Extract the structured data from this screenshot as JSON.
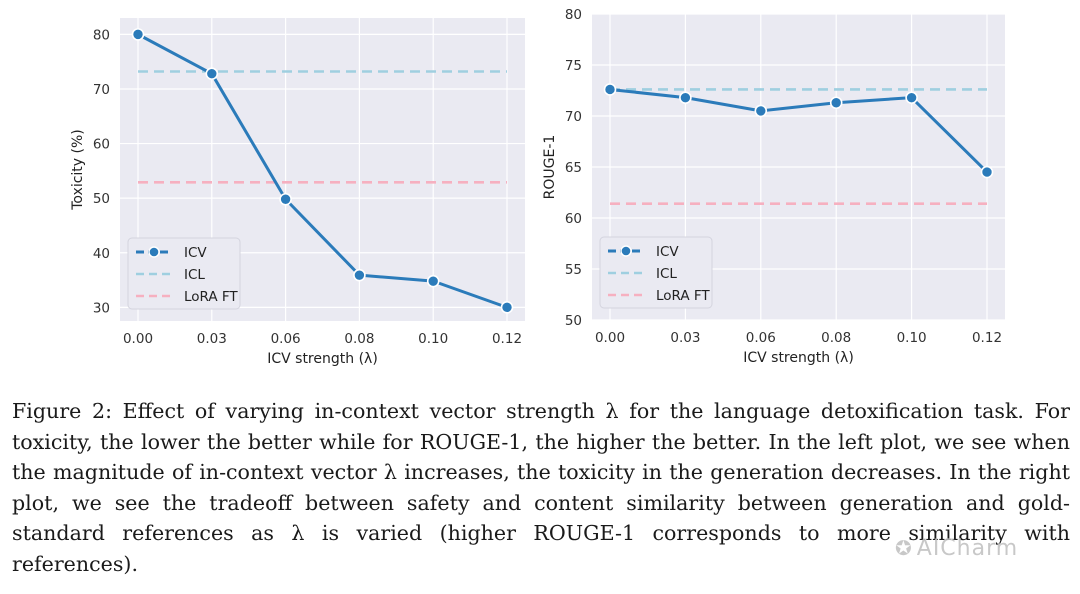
{
  "chart_data": [
    {
      "type": "line",
      "title": "",
      "xlabel": "ICV strength (λ)",
      "ylabel": "Toxicity (%)",
      "categories": [
        "0.00",
        "0.03",
        "0.06",
        "0.08",
        "0.10",
        "0.12"
      ],
      "yticks": [
        "30",
        "40",
        "50",
        "60",
        "70",
        "80"
      ],
      "ylim": [
        27.5,
        83
      ],
      "grid": true,
      "legend_position": "lower-left",
      "series": [
        {
          "name": "ICV",
          "values": [
            80,
            72.8,
            49.8,
            35.9,
            34.8,
            30.0
          ],
          "color": "#2b7bba",
          "style": "solid-marker"
        },
        {
          "name": "ICL",
          "values": [
            73.2,
            73.2,
            73.2,
            73.2,
            73.2,
            73.2
          ],
          "color": "#9fcfe0",
          "style": "dashed"
        },
        {
          "name": "LoRA FT",
          "values": [
            52.9,
            52.9,
            52.9,
            52.9,
            52.9,
            52.9
          ],
          "color": "#f6b0c0",
          "style": "dashed"
        }
      ]
    },
    {
      "type": "line",
      "title": "",
      "xlabel": "ICV strength (λ)",
      "ylabel": "ROUGE-1",
      "categories": [
        "0.00",
        "0.03",
        "0.06",
        "0.08",
        "0.10",
        "0.12"
      ],
      "yticks": [
        "50",
        "55",
        "60",
        "65",
        "70",
        "75",
        "80"
      ],
      "ylim": [
        50,
        80
      ],
      "grid": true,
      "legend_position": "lower-left",
      "series": [
        {
          "name": "ICV",
          "values": [
            72.6,
            71.8,
            70.5,
            71.3,
            71.8,
            64.5
          ],
          "color": "#2b7bba",
          "style": "solid-marker"
        },
        {
          "name": "ICL",
          "values": [
            72.6,
            72.6,
            72.6,
            72.6,
            72.6,
            72.6
          ],
          "color": "#9fcfe0",
          "style": "dashed"
        },
        {
          "name": "LoRA FT",
          "values": [
            61.4,
            61.4,
            61.4,
            61.4,
            61.4,
            61.4
          ],
          "color": "#f6b0c0",
          "style": "dashed"
        }
      ]
    }
  ],
  "caption": "Figure 2: Effect of varying in-context vector strength λ for the language detoxification task. For toxicity, the lower the better while for ROUGE-1, the higher the better. In the left plot, we see when the magnitude of in-context vector λ increases, the toxicity in the generation decreases. In the right plot, we see the tradeoff between safety and content similarity between generation and gold-standard references as λ is varied (higher ROUGE-1 corresponds to more similarity with references).",
  "watermark": "AICharm",
  "watermark_icon": "wechat-icon"
}
